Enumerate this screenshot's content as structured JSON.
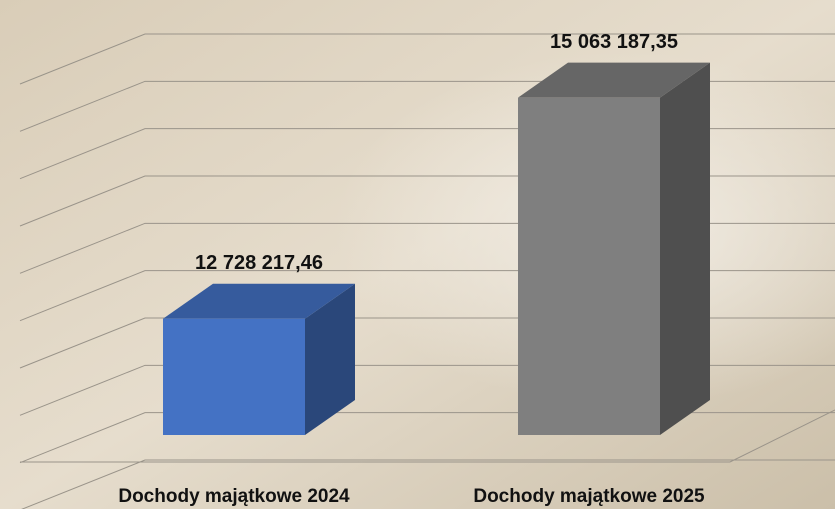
{
  "chart_data": {
    "type": "bar3d",
    "categories": [
      "Dochody majątkowe 2024",
      "Dochody majątkowe 2025"
    ],
    "values": [
      12728217.46,
      15063187.35
    ],
    "value_labels": [
      "12 728 217,46",
      "15 063 187,35"
    ],
    "colors": [
      "#4472c4",
      "#7f7f7f"
    ],
    "ylim": [
      11500000,
      16000000
    ],
    "yticks": [
      11500000,
      12000000,
      12500000,
      13000000,
      13500000,
      14000000,
      14500000,
      15000000,
      15500000,
      16000000
    ],
    "grid": true
  }
}
